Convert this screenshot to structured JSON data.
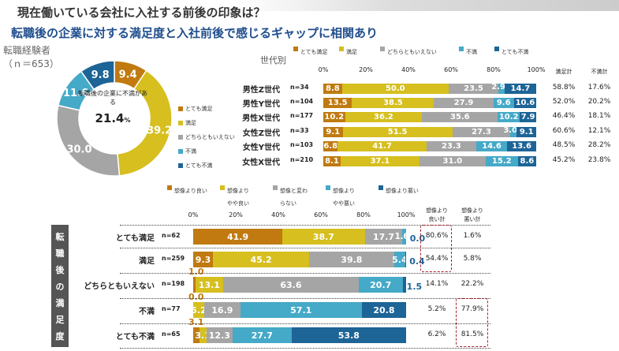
{
  "title": "現在働いている会社に入社する前後の印象は？",
  "subtitle": "転職後の企業に対する満足度と入社前後で感じるギャップに相関あり",
  "colors": [
    "#c07a10",
    "#d6bf1f",
    "#a5a5a5",
    "#45a9c8",
    "#1d6497"
  ],
  "chart_data": [
    {
      "type": "pie",
      "title": "転職経験者",
      "n_label": "（ｎ＝653）",
      "center_label": "転職後の企業に不満がある",
      "center_value": "21.4",
      "center_unit": "%",
      "categories": [
        "とても満足",
        "満足",
        "どちらともいえない",
        "不満",
        "とても不満"
      ],
      "values": [
        9.4,
        39.2,
        30.0,
        11.6,
        9.8
      ],
      "value_labels": [
        "9.4",
        "39.2",
        "30.0",
        "11.6",
        "9.8"
      ]
    },
    {
      "type": "bar",
      "stacked": true,
      "orientation": "horizontal",
      "title": "世代別",
      "legend": [
        "とても満足",
        "満足",
        "どちらともいえない",
        "不満",
        "とても不満"
      ],
      "xticks": [
        "0%",
        "20%",
        "40%",
        "60%",
        "80%",
        "100%"
      ],
      "xlim": [
        0,
        100
      ],
      "table_headers": [
        "満足計",
        "不満計"
      ],
      "rows": [
        {
          "label": "男性Z世代",
          "n": "n=34",
          "values": [
            8.8,
            50.0,
            23.5,
            2.9,
            14.7
          ],
          "labels": [
            "8.8",
            "50.0",
            "23.5",
            "2.9",
            "14.7"
          ],
          "totals": [
            "58.8%",
            "17.6%"
          ]
        },
        {
          "label": "男性Y世代",
          "n": "n=104",
          "values": [
            13.5,
            38.5,
            27.9,
            9.6,
            10.6
          ],
          "labels": [
            "13.5",
            "38.5",
            "27.9",
            "9.6",
            "10.6"
          ],
          "totals": [
            "52.0%",
            "20.2%"
          ]
        },
        {
          "label": "男性X世代",
          "n": "n=177",
          "values": [
            10.2,
            36.2,
            35.6,
            10.2,
            7.9
          ],
          "labels": [
            "10.2",
            "36.2",
            "35.6",
            "10.2",
            "7.9"
          ],
          "totals": [
            "46.4%",
            "18.1%"
          ]
        },
        {
          "label": "女性Z世代",
          "n": "n=33",
          "values": [
            9.1,
            51.5,
            27.3,
            3.0,
            9.1
          ],
          "labels": [
            "9.1",
            "51.5",
            "27.3",
            "3.0",
            "9.1"
          ],
          "totals": [
            "60.6%",
            "12.1%"
          ]
        },
        {
          "label": "女性Y世代",
          "n": "n=103",
          "values": [
            6.8,
            41.7,
            23.3,
            14.6,
            13.6
          ],
          "labels": [
            "6.8",
            "41.7",
            "23.3",
            "14.6",
            "13.6"
          ],
          "totals": [
            "48.5%",
            "28.2%"
          ]
        },
        {
          "label": "女性X世代",
          "n": "n=210",
          "values": [
            8.1,
            37.1,
            31.0,
            15.2,
            8.6
          ],
          "labels": [
            "8.1",
            "37.1",
            "31.0",
            "15.2",
            "8.6"
          ],
          "totals": [
            "45.2%",
            "23.8%"
          ]
        }
      ]
    },
    {
      "type": "bar",
      "stacked": true,
      "orientation": "horizontal",
      "title": "転職後の満足度",
      "legend": [
        "想像より良い",
        "想像より\nやや良い",
        "想像と変わ\nらない",
        "想像より\nやや悪い",
        "想像より悪い"
      ],
      "xticks": [
        "0%",
        "20%",
        "40%",
        "60%",
        "80%",
        "100%"
      ],
      "xlim": [
        0,
        100
      ],
      "table_headers": [
        "想像より\n良い計",
        "想像より\n悪い計"
      ],
      "rows": [
        {
          "label": "とても満足",
          "n": "n=62",
          "values": [
            41.9,
            38.7,
            17.7,
            1.6,
            0.0
          ],
          "labels": [
            "41.9",
            "38.7",
            "17.7",
            "1.6",
            "0.0"
          ],
          "totals": [
            "80.6%",
            "1.6%"
          ]
        },
        {
          "label": "満足",
          "n": "n=259",
          "values": [
            9.3,
            45.2,
            39.8,
            5.4,
            0.4
          ],
          "labels": [
            "9.3",
            "45.2",
            "39.8",
            "5.4",
            "0.4"
          ],
          "totals": [
            "54.4%",
            "5.8%"
          ]
        },
        {
          "label": "どちらともいえない",
          "n": "n=198",
          "values": [
            1.0,
            13.1,
            63.6,
            20.7,
            1.5
          ],
          "labels": [
            "1.0",
            "13.1",
            "63.6",
            "20.7",
            "1.5"
          ],
          "totals": [
            "14.1%",
            "22.2%"
          ]
        },
        {
          "label": "不満",
          "n": "n=77",
          "values": [
            0.0,
            5.2,
            16.9,
            57.1,
            20.8
          ],
          "labels": [
            "0.0",
            "5.2",
            "16.9",
            "57.1",
            "20.8"
          ],
          "totals": [
            "5.2%",
            "77.9%"
          ]
        },
        {
          "label": "とても不満",
          "n": "n=65",
          "values": [
            3.1,
            3.1,
            12.3,
            27.7,
            53.8
          ],
          "labels": [
            "3.1",
            "3.1",
            "12.3",
            "27.7",
            "53.8"
          ],
          "totals": [
            "6.2%",
            "81.5%"
          ]
        }
      ]
    }
  ]
}
